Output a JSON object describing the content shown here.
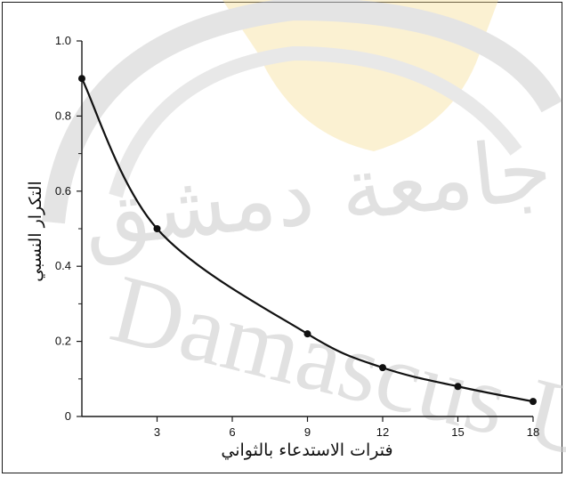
{
  "watermark": {
    "latin_text": "Damascus Uni",
    "arabic_text": "جامعة دمشق",
    "color": "#c9c9c9",
    "emblem_color": "#f3d98a"
  },
  "colors": {
    "axis": "#1a1a1a",
    "curve": "#111111",
    "points": "#111111"
  },
  "chart_data": {
    "type": "line",
    "xlabel": "فترات الاستدعاء بالثواني",
    "ylabel": "التكرار النسبي",
    "xlim": [
      0,
      18
    ],
    "ylim": [
      0,
      1.0
    ],
    "x_ticks": [
      3,
      6,
      9,
      12,
      15,
      18
    ],
    "x_tick_labels": [
      "3",
      "6",
      "9",
      "12",
      "15",
      "18"
    ],
    "y_ticks": [
      0,
      0.2,
      0.4,
      0.6,
      0.8,
      1.0
    ],
    "y_tick_labels": [
      "0",
      "0.2",
      "0.4",
      "0.6",
      "0.8",
      "1.0"
    ],
    "grid": false,
    "series": [
      {
        "x": [
          0,
          3,
          9,
          12,
          15,
          18
        ],
        "y": [
          0.9,
          0.5,
          0.22,
          0.13,
          0.08,
          0.04
        ],
        "markers": true,
        "smooth": true
      }
    ]
  }
}
